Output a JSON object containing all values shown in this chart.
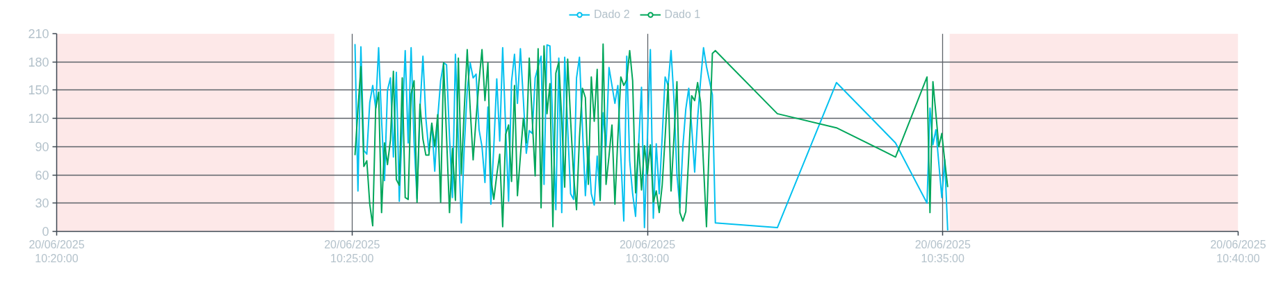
{
  "chart_data": {
    "type": "line",
    "x": [
      "2025-06-20T10:25:03",
      "2025-06-20T10:25:06",
      "2025-06-20T10:25:09",
      "2025-06-20T10:25:12",
      "2025-06-20T10:25:15",
      "2025-06-20T10:25:18",
      "2025-06-20T10:25:21",
      "2025-06-20T10:25:24",
      "2025-06-20T10:25:27",
      "2025-06-20T10:25:30",
      "2025-06-20T10:25:33",
      "2025-06-20T10:25:36",
      "2025-06-20T10:25:39",
      "2025-06-20T10:25:42",
      "2025-06-20T10:25:45",
      "2025-06-20T10:25:48",
      "2025-06-20T10:25:51",
      "2025-06-20T10:25:54",
      "2025-06-20T10:25:57",
      "2025-06-20T10:26:00",
      "2025-06-20T10:26:03",
      "2025-06-20T10:26:06",
      "2025-06-20T10:26:09",
      "2025-06-20T10:26:12",
      "2025-06-20T10:26:15",
      "2025-06-20T10:26:18",
      "2025-06-20T10:26:21",
      "2025-06-20T10:26:24",
      "2025-06-20T10:26:27",
      "2025-06-20T10:26:30",
      "2025-06-20T10:26:33",
      "2025-06-20T10:26:36",
      "2025-06-20T10:26:39",
      "2025-06-20T10:26:42",
      "2025-06-20T10:26:45",
      "2025-06-20T10:26:48",
      "2025-06-20T10:26:51",
      "2025-06-20T10:26:54",
      "2025-06-20T10:26:57",
      "2025-06-20T10:27:00",
      "2025-06-20T10:27:03",
      "2025-06-20T10:27:06",
      "2025-06-20T10:27:09",
      "2025-06-20T10:27:12",
      "2025-06-20T10:27:15",
      "2025-06-20T10:27:18",
      "2025-06-20T10:27:21",
      "2025-06-20T10:27:24",
      "2025-06-20T10:27:27",
      "2025-06-20T10:27:30",
      "2025-06-20T10:27:33",
      "2025-06-20T10:27:36",
      "2025-06-20T10:27:39",
      "2025-06-20T10:27:42",
      "2025-06-20T10:27:45",
      "2025-06-20T10:27:48",
      "2025-06-20T10:27:51",
      "2025-06-20T10:27:54",
      "2025-06-20T10:27:57",
      "2025-06-20T10:28:00",
      "2025-06-20T10:28:03",
      "2025-06-20T10:28:06",
      "2025-06-20T10:28:09",
      "2025-06-20T10:28:12",
      "2025-06-20T10:28:15",
      "2025-06-20T10:28:18",
      "2025-06-20T10:28:21",
      "2025-06-20T10:28:24",
      "2025-06-20T10:28:27",
      "2025-06-20T10:28:30",
      "2025-06-20T10:28:33",
      "2025-06-20T10:28:36",
      "2025-06-20T10:28:39",
      "2025-06-20T10:28:42",
      "2025-06-20T10:28:45",
      "2025-06-20T10:28:48",
      "2025-06-20T10:28:51",
      "2025-06-20T10:28:54",
      "2025-06-20T10:28:57",
      "2025-06-20T10:29:00",
      "2025-06-20T10:29:03",
      "2025-06-20T10:29:06",
      "2025-06-20T10:29:09",
      "2025-06-20T10:29:12",
      "2025-06-20T10:29:15",
      "2025-06-20T10:29:18",
      "2025-06-20T10:29:21",
      "2025-06-20T10:29:24",
      "2025-06-20T10:29:27",
      "2025-06-20T10:29:30",
      "2025-06-20T10:29:33",
      "2025-06-20T10:29:36",
      "2025-06-20T10:29:39",
      "2025-06-20T10:29:42",
      "2025-06-20T10:29:45",
      "2025-06-20T10:29:48",
      "2025-06-20T10:29:51",
      "2025-06-20T10:29:54",
      "2025-06-20T10:29:57",
      "2025-06-20T10:30:00",
      "2025-06-20T10:30:03",
      "2025-06-20T10:30:06",
      "2025-06-20T10:30:09",
      "2025-06-20T10:30:12",
      "2025-06-20T10:30:15",
      "2025-06-20T10:30:18",
      "2025-06-20T10:30:21",
      "2025-06-20T10:30:24",
      "2025-06-20T10:30:27",
      "2025-06-20T10:30:30",
      "2025-06-20T10:30:33",
      "2025-06-20T10:30:36",
      "2025-06-20T10:30:39",
      "2025-06-20T10:30:42",
      "2025-06-20T10:30:45",
      "2025-06-20T10:30:48",
      "2025-06-20T10:30:51",
      "2025-06-20T10:30:54",
      "2025-06-20T10:30:57",
      "2025-06-20T10:31:00",
      "2025-06-20T10:31:03",
      "2025-06-20T10:31:06",
      "2025-06-20T10:31:09",
      "2025-06-20T10:32:12",
      "2025-06-20T10:33:12",
      "2025-06-20T10:34:12",
      "2025-06-20T10:34:44",
      "2025-06-20T10:34:47",
      "2025-06-20T10:34:50",
      "2025-06-20T10:34:53",
      "2025-06-20T10:34:56",
      "2025-06-20T10:34:59",
      "2025-06-20T10:35:02",
      "2025-06-20T10:35:05"
    ],
    "series": [
      {
        "name": "Dado 2",
        "color": "#00c0ef",
        "values": [
          199,
          43,
          196,
          86,
          82,
          137,
          155,
          131,
          195,
          118,
          54,
          150,
          163,
          79,
          169,
          32,
          113,
          192,
          94,
          195,
          95,
          35,
          130,
          186,
          120,
          85,
          114,
          64,
          120,
          160,
          179,
          177,
          100,
          36,
          188,
          98,
          9,
          90,
          150,
          179,
          163,
          167,
          108,
          90,
          52,
          132,
          29,
          90,
          162,
          96,
          195,
          110,
          32,
          159,
          188,
          136,
          194,
          140,
          83,
          107,
          104,
          163,
          175,
          186,
          50,
          198,
          197,
          110,
          23,
          184,
          20,
          185,
          110,
          40,
          34,
          163,
          185,
          110,
          38,
          90,
          40,
          28,
          80,
          33,
          126,
          90,
          174,
          155,
          136,
          155,
          80,
          11,
          186,
          75,
          40,
          16,
          90,
          153,
          4,
          100,
          193,
          14,
          93,
          40,
          100,
          164,
          155,
          192,
          140,
          60,
          25,
          90,
          130,
          152,
          110,
          63,
          120,
          160,
          195,
          175,
          160,
          145,
          9,
          4,
          158,
          94,
          30,
          131,
          92,
          108,
          72,
          36,
          76,
          1
        ]
      },
      {
        "name": "Dado 1",
        "color": "#00a65a",
        "values": [
          81,
          130,
          175,
          69,
          75,
          29,
          6,
          130,
          148,
          20,
          94,
          71,
          97,
          170,
          55,
          49,
          163,
          36,
          34,
          146,
          160,
          31,
          135,
          98,
          81,
          81,
          115,
          90,
          124,
          31,
          179,
          100,
          20,
          88,
          33,
          184,
          61,
          130,
          193,
          130,
          76,
          120,
          160,
          193,
          139,
          179,
          56,
          34,
          60,
          82,
          5,
          103,
          113,
          53,
          155,
          38,
          80,
          120,
          94,
          184,
          120,
          59,
          194,
          25,
          197,
          125,
          157,
          5,
          168,
          180,
          118,
          47,
          183,
          118,
          60,
          23,
          100,
          152,
          142,
          50,
          164,
          117,
          172,
          33,
          199,
          50,
          80,
          113,
          29,
          100,
          164,
          155,
          161,
          192,
          160,
          41,
          93,
          44,
          91,
          61,
          92,
          31,
          43,
          20,
          49,
          100,
          157,
          43,
          100,
          159,
          20,
          11,
          21,
          80,
          144,
          139,
          158,
          137,
          70,
          5,
          100,
          189,
          192,
          125,
          110,
          79,
          164,
          20,
          159,
          125,
          90,
          104,
          75,
          47
        ]
      }
    ],
    "xlim": [
      "2025-06-20T10:20:00",
      "2025-06-20T10:40:00"
    ],
    "xticks": [
      {
        "value": "2025-06-20T10:20:00",
        "label": "20/06/2025\n10:20:00"
      },
      {
        "value": "2025-06-20T10:25:00",
        "label": "20/06/2025\n10:25:00"
      },
      {
        "value": "2025-06-20T10:30:00",
        "label": "20/06/2025\n10:30:00"
      },
      {
        "value": "2025-06-20T10:35:00",
        "label": "20/06/2025\n10:35:00"
      },
      {
        "value": "2025-06-20T10:40:00",
        "label": "20/06/2025\n10:40:00"
      }
    ],
    "ylim": [
      0,
      210
    ],
    "yticks": [
      0,
      30,
      60,
      90,
      120,
      150,
      180,
      210
    ],
    "grid": true,
    "legend": "top",
    "bands": [
      {
        "axis": "x",
        "from": "2025-06-20T10:20:00",
        "to": "2025-06-20T10:24:42",
        "color": "#fde8e8"
      },
      {
        "axis": "x",
        "from": "2025-06-20T10:35:07",
        "to": "2025-06-20T10:40:00",
        "color": "#fde8e8"
      }
    ]
  }
}
